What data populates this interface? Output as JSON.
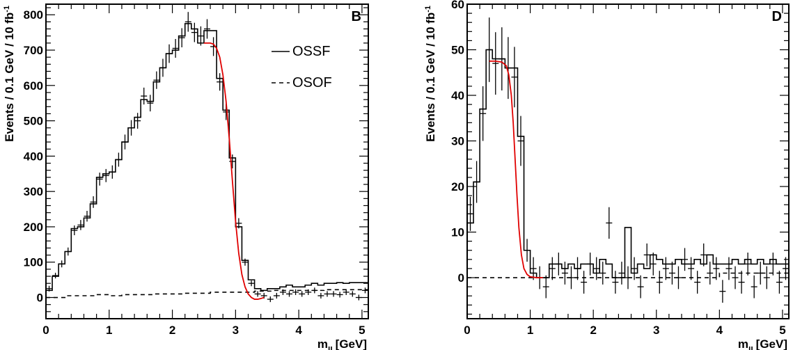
{
  "chart_data": [
    {
      "type": "line",
      "panel_label": "B",
      "xlabel": "m_ll [GeV]",
      "ylabel": "Events / 0.1 GeV / 10 fb^-1",
      "xlim": [
        0,
        5.1
      ],
      "ylim": [
        -60,
        830
      ],
      "xticks": [
        0,
        1,
        2,
        3,
        4,
        5
      ],
      "yticks": [
        0,
        100,
        200,
        300,
        400,
        500,
        600,
        700,
        800
      ],
      "legend": {
        "placement": "top-right",
        "entries": [
          "OSSF",
          "OSOF"
        ]
      },
      "series": [
        {
          "name": "OSSF",
          "style": "histogram",
          "color": "#000000",
          "bin_width": 0.1,
          "values": [
            20,
            60,
            95,
            130,
            195,
            200,
            225,
            265,
            340,
            350,
            355,
            390,
            440,
            480,
            510,
            560,
            555,
            610,
            650,
            690,
            700,
            740,
            775,
            760,
            720,
            755,
            755,
            620,
            530,
            395,
            200,
            105,
            50,
            25,
            20,
            25,
            25,
            30,
            35,
            30,
            30,
            35,
            40,
            35,
            40,
            40,
            42,
            40,
            42,
            42,
            42
          ]
        },
        {
          "name": "OSSF data",
          "style": "points",
          "color": "#000000",
          "x": [
            0.05,
            0.15,
            0.25,
            0.35,
            0.45,
            0.55,
            0.65,
            0.75,
            0.85,
            0.95,
            1.05,
            1.15,
            1.25,
            1.35,
            1.45,
            1.55,
            1.65,
            1.75,
            1.85,
            1.95,
            2.05,
            2.15,
            2.25,
            2.35,
            2.45,
            2.55,
            2.65,
            2.75,
            2.85,
            2.95,
            3.05,
            3.15,
            3.25,
            3.35,
            3.45,
            3.55,
            3.65,
            3.75,
            3.85,
            3.95,
            4.05,
            4.15,
            4.25,
            4.35,
            4.45,
            4.55,
            4.65,
            4.75,
            4.85,
            4.95,
            5.05
          ],
          "y": [
            25,
            62,
            95,
            130,
            190,
            205,
            230,
            270,
            335,
            345,
            355,
            390,
            440,
            480,
            500,
            570,
            550,
            615,
            650,
            690,
            705,
            735,
            780,
            750,
            740,
            760,
            710,
            610,
            525,
            385,
            210,
            100,
            40,
            10,
            5,
            -5,
            5,
            15,
            10,
            15,
            10,
            15,
            20,
            5,
            10,
            10,
            8,
            15,
            10,
            0,
            20
          ]
        },
        {
          "name": "OSOF",
          "style": "histogram-dashed",
          "color": "#000000",
          "bin_width": 0.1,
          "values": [
            0,
            0,
            0,
            5,
            5,
            5,
            5,
            5,
            8,
            8,
            5,
            5,
            8,
            8,
            8,
            8,
            8,
            10,
            10,
            10,
            10,
            10,
            12,
            12,
            12,
            12,
            15,
            15,
            15,
            15,
            15,
            15,
            15,
            18,
            18,
            18,
            20,
            20,
            20,
            20,
            20,
            20,
            20,
            20,
            22,
            22,
            22,
            22,
            22,
            22,
            22
          ]
        },
        {
          "name": "fit",
          "style": "line",
          "color": "#e00000",
          "x": [
            2.5,
            2.6,
            2.65,
            2.7,
            2.75,
            2.8,
            2.85,
            2.9,
            2.95,
            3.0,
            3.05,
            3.1,
            3.15,
            3.2,
            3.25,
            3.3,
            3.35,
            3.4,
            3.45
          ],
          "y": [
            720,
            720,
            717,
            705,
            680,
            630,
            555,
            450,
            330,
            215,
            125,
            65,
            30,
            10,
            0,
            -5,
            -5,
            -3,
            0
          ]
        }
      ]
    },
    {
      "type": "line",
      "panel_label": "D",
      "xlabel": "m_ll [GeV]",
      "ylabel": "Events / 0.1 GeV / 10 fb^-1",
      "xlim": [
        0,
        5.1
      ],
      "ylim": [
        -9,
        60
      ],
      "xticks": [
        0,
        1,
        2,
        3,
        4,
        5
      ],
      "yticks": [
        0,
        10,
        20,
        30,
        40,
        50,
        60
      ],
      "series": [
        {
          "name": "OSSF",
          "style": "histogram",
          "color": "#000000",
          "bin_width": 0.1,
          "values": [
            12,
            21,
            37,
            50,
            48,
            48,
            46,
            46,
            31,
            6,
            1,
            0,
            0,
            3,
            3,
            2,
            3,
            2,
            3,
            3,
            1,
            4,
            3,
            0,
            0,
            11,
            1,
            3,
            2,
            5,
            4,
            3,
            3,
            4,
            3,
            3,
            4,
            3,
            5,
            3,
            3,
            3,
            4,
            3,
            4,
            3,
            4,
            3,
            4,
            3,
            3
          ]
        },
        {
          "name": "OSSF data",
          "style": "points",
          "color": "#000000",
          "x": [
            0.05,
            0.15,
            0.25,
            0.35,
            0.45,
            0.55,
            0.65,
            0.75,
            0.85,
            0.95,
            1.05,
            1.15,
            1.25,
            1.35,
            1.45,
            1.55,
            1.65,
            1.75,
            1.85,
            1.95,
            2.05,
            2.15,
            2.25,
            2.35,
            2.45,
            2.55,
            2.65,
            2.75,
            2.85,
            2.95,
            3.05,
            3.15,
            3.25,
            3.35,
            3.45,
            3.55,
            3.65,
            3.75,
            3.85,
            3.95,
            4.05,
            4.15,
            4.25,
            4.35,
            4.45,
            4.55,
            4.65,
            4.75,
            4.85,
            4.95,
            5.05
          ],
          "y": [
            14,
            21,
            36,
            50,
            47,
            48,
            46,
            44,
            30,
            6,
            2,
            0,
            -2,
            2,
            3,
            1,
            0,
            2,
            -1,
            3,
            2,
            1,
            12,
            -1,
            1,
            0,
            2,
            -2,
            5,
            3,
            -1,
            2,
            1,
            0,
            4,
            2,
            -1,
            5,
            1,
            2,
            -3,
            2,
            0,
            -1,
            3,
            -2,
            1,
            0,
            3,
            -1,
            2
          ]
        },
        {
          "name": "OSOF",
          "style": "histogram-dashed",
          "color": "#000000",
          "bin_width": 0.1,
          "values": [
            0,
            0,
            0,
            0,
            0,
            0,
            0,
            0,
            0,
            0,
            0,
            0,
            0,
            0,
            0,
            0,
            0,
            0,
            0,
            0,
            0,
            0,
            0,
            0,
            0,
            0,
            0,
            0,
            0,
            0,
            0,
            0,
            0,
            0,
            0,
            0,
            0,
            0,
            0,
            0,
            1,
            1,
            1,
            1,
            1,
            1,
            1,
            1,
            1,
            1,
            1
          ]
        },
        {
          "name": "fit",
          "style": "line",
          "color": "#e00000",
          "x": [
            0.35,
            0.45,
            0.55,
            0.62,
            0.66,
            0.7,
            0.73,
            0.76,
            0.79,
            0.82,
            0.86,
            0.9,
            0.95,
            1.0,
            1.1,
            1.2
          ],
          "y": [
            47.5,
            47.5,
            47.3,
            46.5,
            44.5,
            40,
            34,
            26,
            18,
            11,
            5,
            2,
            0.7,
            0.2,
            0,
            0
          ]
        }
      ]
    }
  ]
}
